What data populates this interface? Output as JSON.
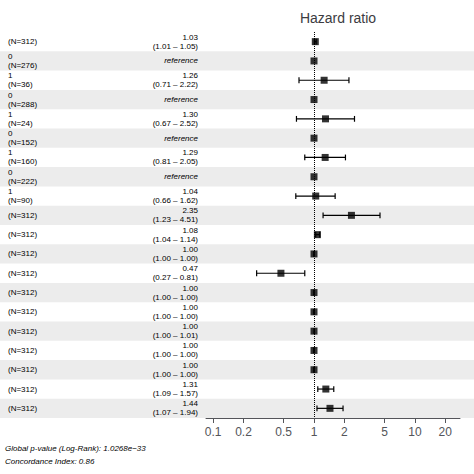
{
  "chart_data": {
    "type": "forest",
    "title": "Hazard ratio",
    "categories": [
      "(N=312)",
      "0\n(N=276)",
      "1\n(N=36)",
      "0\n(N=288)",
      "1\n(N=24)",
      "0\n(N=152)",
      "1\n(N=160)",
      "0\n(N=222)",
      "1\n(N=90)",
      "(N=312)",
      "(N=312)",
      "(N=312)",
      "(N=312)",
      "(N=312)",
      "(N=312)",
      "(N=312)",
      "(N=312)",
      "(N=312)",
      "(N=312)",
      "(N=312)"
    ],
    "values": [
      1.03,
      1.0,
      1.26,
      1.0,
      1.3,
      1.0,
      1.29,
      1.0,
      1.04,
      2.35,
      1.08,
      1.0,
      0.47,
      1.0,
      1.0,
      1.0,
      1.0,
      1.0,
      1.31,
      1.44
    ],
    "value_labels": [
      "1.03\n(1.01 – 1.05)",
      "reference",
      "1.26\n(0.71 – 2.22)",
      "reference",
      "1.30\n(0.67 – 2.52)",
      "reference",
      "1.29\n(0.81 – 2.05)",
      "reference",
      "1.04\n(0.66 – 1.62)",
      "2.35\n(1.23 – 4.51)",
      "1.08\n(1.04 – 1.14)",
      "1.00\n(1.00 – 1.00)",
      "0.47\n(0.27 – 0.81)",
      "1.00\n(1.00 – 1.00)",
      "1.00\n(1.00 – 1.00)",
      "1.00\n(1.00 – 1.01)",
      "1.00\n(1.00 – 1.00)",
      "1.00\n(1.00 – 1.00)",
      "1.31\n(1.09 – 1.57)",
      "1.44\n(1.07 – 1.94)"
    ],
    "lo": [
      1.01,
      null,
      0.71,
      null,
      0.67,
      null,
      0.81,
      null,
      0.66,
      1.23,
      1.04,
      1.0,
      0.27,
      1.0,
      1.0,
      1.0,
      1.0,
      1.0,
      1.09,
      1.07
    ],
    "hi": [
      1.05,
      null,
      2.22,
      null,
      2.52,
      null,
      2.05,
      null,
      1.62,
      4.51,
      1.14,
      1.0,
      0.81,
      1.0,
      1.0,
      1.01,
      1.0,
      1.0,
      1.57,
      1.94
    ],
    "log": "x",
    "xlim": [
      0.085,
      28
    ],
    "xticks": [
      0.1,
      0.2,
      0.5,
      1,
      2,
      5,
      10,
      20
    ],
    "reference_x": 1.0,
    "color": "black",
    "grid": false,
    "annotations": [
      "Global p-value (Log-Rank): 1.0268e−33",
      "Concordance Index: 0.86"
    ]
  }
}
